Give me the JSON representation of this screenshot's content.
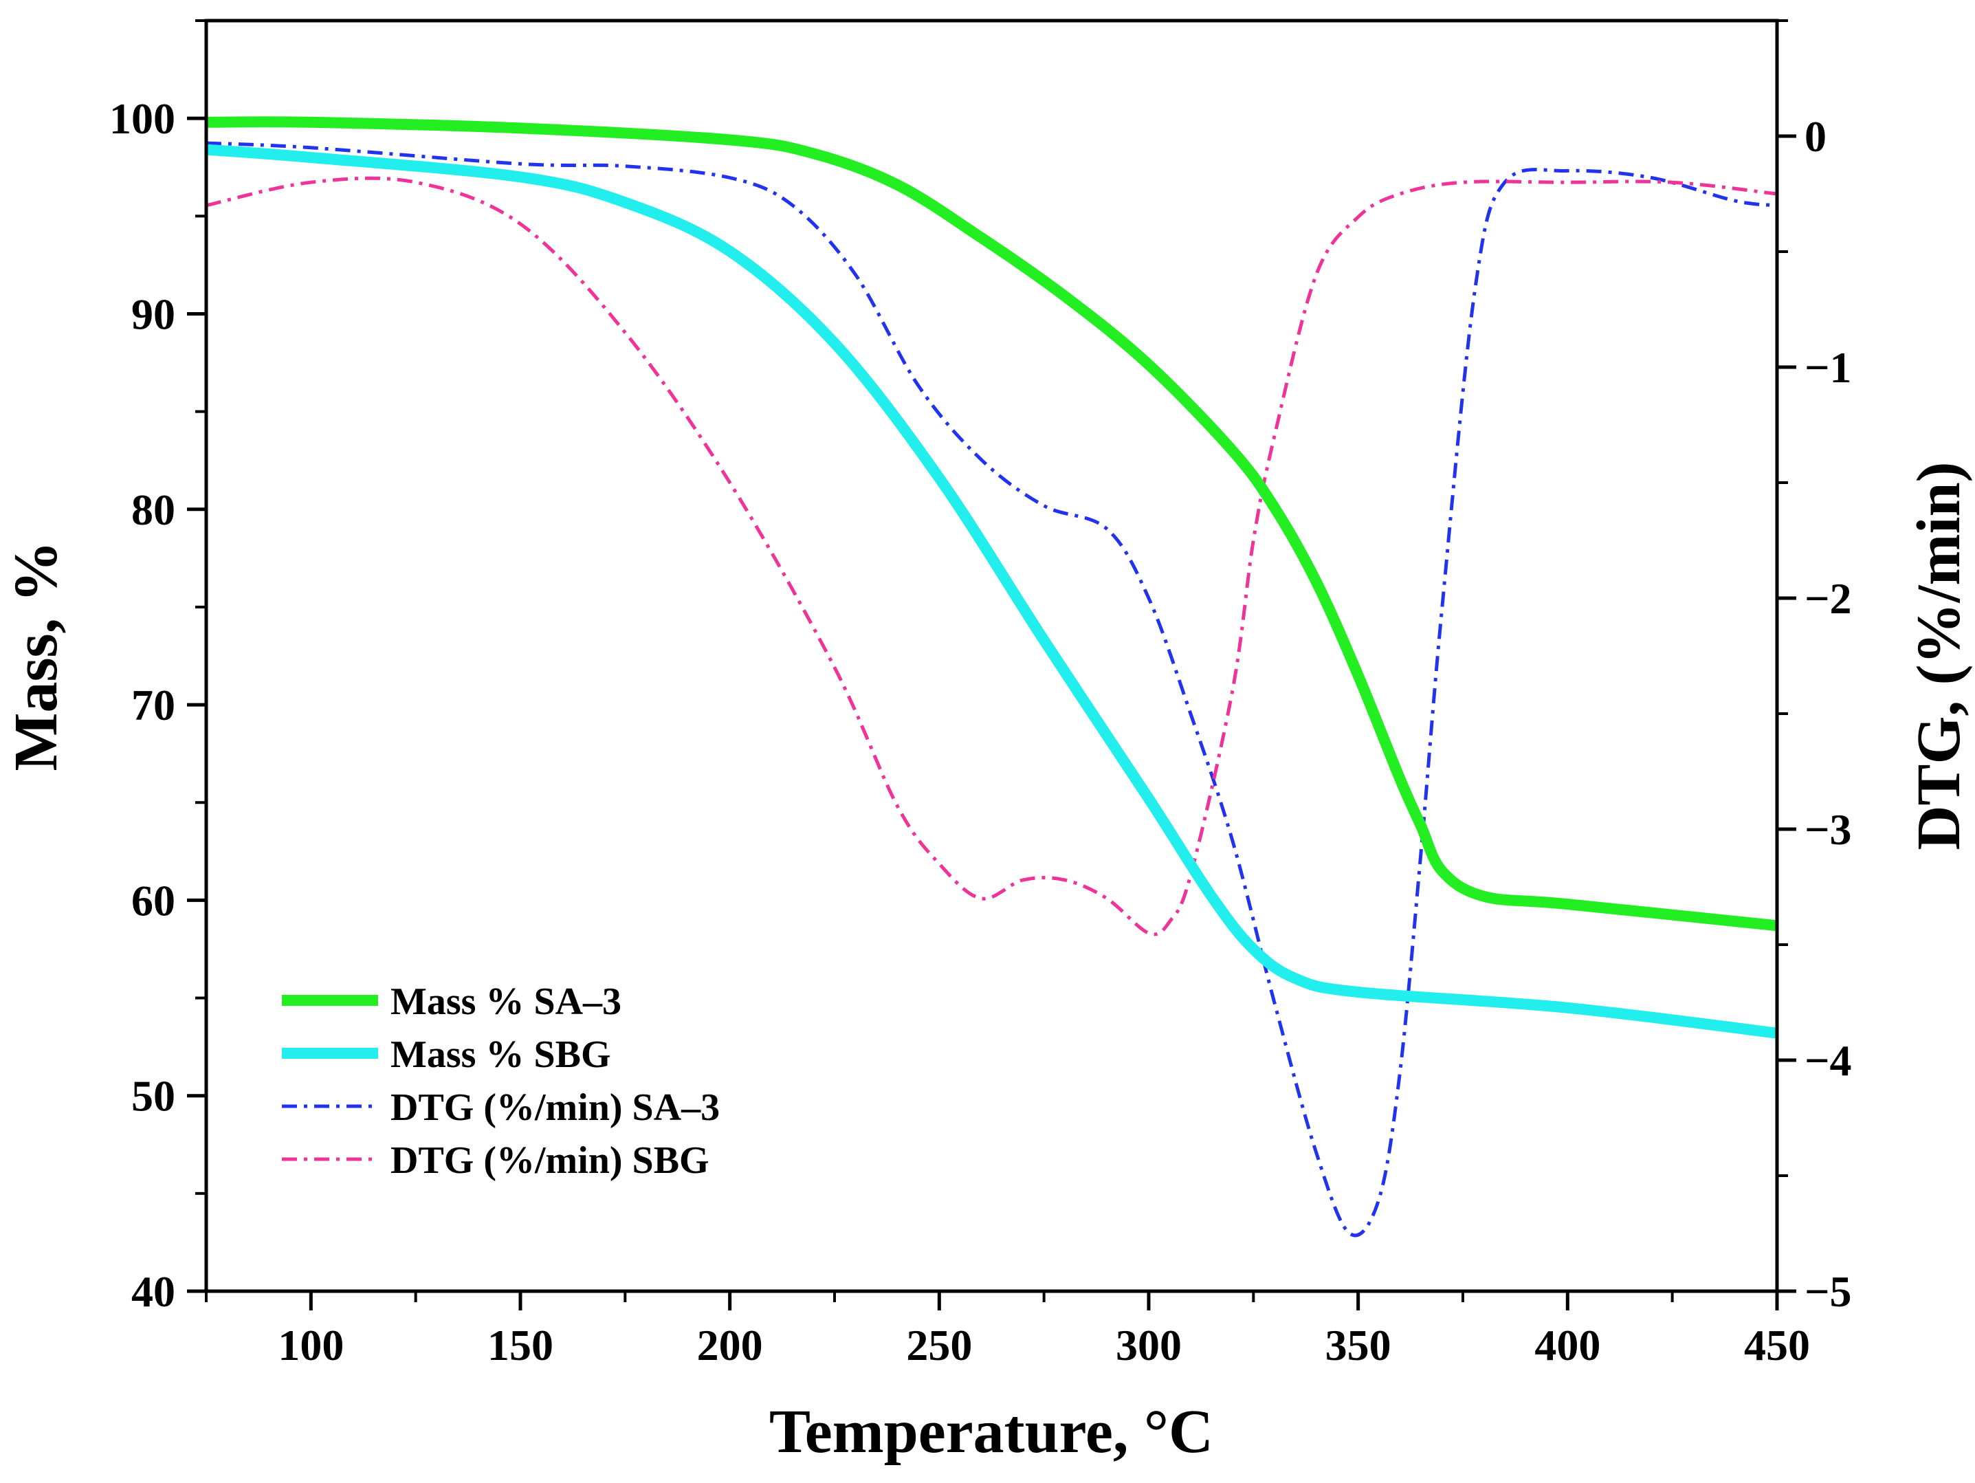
{
  "chart_data": {
    "type": "line",
    "title": "",
    "xlabel": "Temperature, °C",
    "ylabel_left": "Mass, %",
    "ylabel_right": "DTG, (%/min)",
    "xlim": [
      75,
      450
    ],
    "ylim_left": [
      40,
      105
    ],
    "ylim_right": [
      -5,
      0.5
    ],
    "x_ticks": [
      100,
      150,
      200,
      250,
      300,
      350,
      400,
      450
    ],
    "y_left_ticks": [
      40,
      50,
      60,
      70,
      80,
      90,
      100
    ],
    "y_right_ticks": [
      0,
      -1,
      -2,
      -3,
      -4,
      -5
    ],
    "legend_position": "bottom-left",
    "grid": false,
    "series": [
      {
        "name": "Mass % SA–3",
        "axis": "left",
        "color": "#22ee22",
        "style": "solid",
        "x": [
          75,
          100,
          150,
          200,
          220,
          240,
          260,
          280,
          300,
          320,
          330,
          340,
          350,
          360,
          365,
          370,
          380,
          400,
          450
        ],
        "y": [
          99.8,
          99.8,
          99.5,
          98.9,
          98.2,
          96.6,
          93.9,
          90.9,
          87.4,
          83.0,
          80.1,
          76.3,
          71.5,
          66.2,
          63.8,
          61.5,
          60.2,
          59.8,
          58.7
        ]
      },
      {
        "name": "Mass % SBG",
        "axis": "left",
        "color": "#22eeee",
        "style": "solid",
        "x": [
          75,
          100,
          150,
          175,
          200,
          225,
          250,
          275,
          300,
          315,
          325,
          335,
          350,
          400,
          450
        ],
        "y": [
          98.4,
          98.0,
          97.0,
          95.7,
          93.2,
          88.5,
          81.6,
          73.3,
          65.2,
          60.2,
          57.5,
          56.0,
          55.3,
          54.5,
          53.2
        ]
      },
      {
        "name": "DTG (%/min) SA–3",
        "axis": "right",
        "color": "#2233ee",
        "style": "dash-dot",
        "x": [
          75,
          100,
          150,
          175,
          200,
          215,
          230,
          245,
          260,
          275,
          290,
          300,
          310,
          320,
          330,
          340,
          348,
          355,
          360,
          365,
          370,
          378,
          385,
          400,
          420,
          440,
          450
        ],
        "y": [
          -0.03,
          -0.05,
          -0.12,
          -0.13,
          -0.18,
          -0.3,
          -0.6,
          -1.08,
          -1.4,
          -1.6,
          -1.7,
          -2.0,
          -2.5,
          -3.05,
          -3.75,
          -4.4,
          -4.75,
          -4.6,
          -4.05,
          -3.1,
          -2.05,
          -0.65,
          -0.2,
          -0.15,
          -0.18,
          -0.28,
          -0.3
        ]
      },
      {
        "name": "DTG (%/min) SBG",
        "axis": "right",
        "color": "#ee3399",
        "style": "dash-dot",
        "x": [
          75,
          100,
          125,
          150,
          175,
          200,
          225,
          240,
          250,
          260,
          270,
          280,
          290,
          300,
          305,
          310,
          320,
          325,
          330,
          340,
          350,
          360,
          375,
          400,
          425,
          450
        ],
        "y": [
          -0.3,
          -0.2,
          -0.2,
          -0.38,
          -0.85,
          -1.5,
          -2.3,
          -2.9,
          -3.15,
          -3.3,
          -3.22,
          -3.22,
          -3.3,
          -3.45,
          -3.4,
          -3.2,
          -2.4,
          -1.75,
          -1.3,
          -0.6,
          -0.35,
          -0.25,
          -0.2,
          -0.2,
          -0.2,
          -0.25
        ]
      }
    ]
  }
}
